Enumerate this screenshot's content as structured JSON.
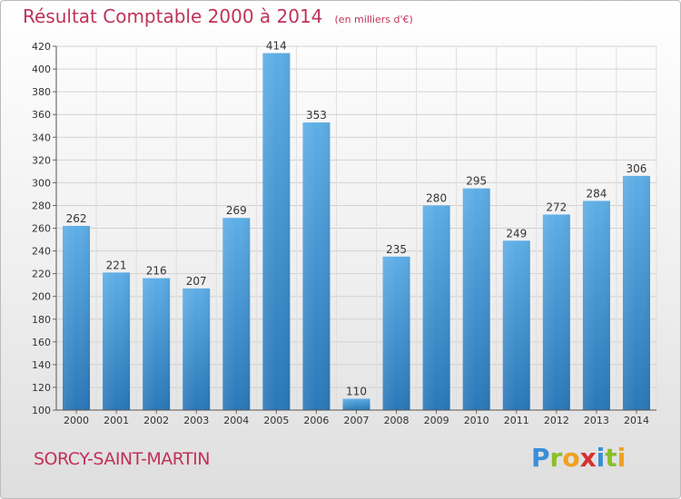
{
  "title": "Résultat Comptable 2000 à 2014",
  "unit": "(en milliers d'€)",
  "commune": "SORCY-SAINT-MARTIN",
  "logo": {
    "letters": [
      "P",
      "r",
      "o",
      "x",
      "i",
      "t",
      "i"
    ],
    "colors": [
      "#3a8fd8",
      "#8bbf2a",
      "#f0a020",
      "#d83030",
      "#3a8fd8",
      "#8bbf2a",
      "#f0a020"
    ]
  },
  "colors": {
    "bar_light": "#5eaee6",
    "bar_dark": "#2a78b8",
    "accent": "#c0325b",
    "grid": "#cfcfcf"
  },
  "chart_data": {
    "type": "bar",
    "title": "Résultat Comptable 2000 à 2014",
    "xlabel": "",
    "ylabel": "",
    "categories": [
      "2000",
      "2001",
      "2002",
      "2003",
      "2004",
      "2005",
      "2006",
      "2007",
      "2008",
      "2009",
      "2010",
      "2011",
      "2012",
      "2013",
      "2014"
    ],
    "values": [
      262,
      221,
      216,
      207,
      269,
      414,
      353,
      110,
      235,
      280,
      295,
      249,
      272,
      284,
      306
    ],
    "ylim": [
      100,
      420
    ],
    "yticks": [
      100,
      120,
      140,
      160,
      180,
      200,
      220,
      240,
      260,
      280,
      300,
      320,
      340,
      360,
      380,
      400,
      420
    ],
    "grid": true
  }
}
